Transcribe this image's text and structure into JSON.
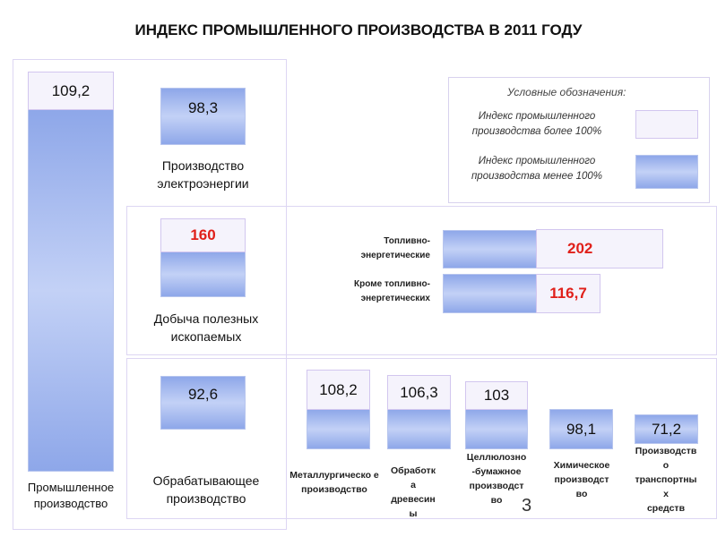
{
  "title": "ИНДЕКС ПРОМЫШЛЕННОГО ПРОИЗВОДСТВА В 2011 ГОДУ",
  "legend": {
    "title": "Условные обозначения:",
    "above": "Индекс промышленного производства более 100%",
    "below": "Индекс промышленного производства менее 100%",
    "colors": {
      "above": "#f5f3fc",
      "below": "#8ea7e9"
    }
  },
  "items": {
    "total": {
      "value": "109,2",
      "label": "Промышленное производство"
    },
    "electricity": {
      "value": "98,3",
      "label": "Производство электроэнергии"
    },
    "mining": {
      "value": "160",
      "label": "Добыча полезных ископаемых"
    },
    "fuel": {
      "value": "202",
      "label": "Топливно-энергетические"
    },
    "nonfuel": {
      "value": "116,7",
      "label": "Кроме топливно-энергетических"
    },
    "manufacturing": {
      "value": "92,6",
      "label": "Обрабатывающее производство"
    },
    "metallurgy": {
      "value": "108,2",
      "label": "Металлургическо е производство"
    },
    "wood": {
      "value": "106,3",
      "label": "Обработк а древесин ы"
    },
    "pulp": {
      "value": "103",
      "label": "Целлюлозно -бумажное производст во"
    },
    "chemical": {
      "value": "98,1",
      "label": "Химическое производст во"
    },
    "transport": {
      "value": "71,2",
      "label": "Производств о транспортны х средств"
    }
  },
  "page_number": "3"
}
